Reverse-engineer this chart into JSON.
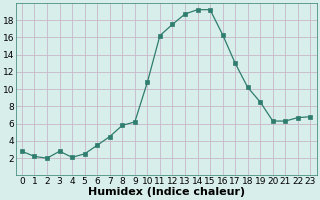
{
  "x": [
    0,
    1,
    2,
    3,
    4,
    5,
    6,
    7,
    8,
    9,
    10,
    11,
    12,
    13,
    14,
    15,
    16,
    17,
    18,
    19,
    20,
    21,
    22,
    23
  ],
  "y": [
    2.8,
    2.2,
    2.0,
    2.8,
    2.1,
    2.5,
    3.5,
    4.5,
    5.8,
    6.2,
    10.8,
    16.2,
    17.5,
    18.7,
    19.2,
    19.2,
    16.3,
    13.0,
    10.2,
    8.5,
    6.3,
    6.3,
    6.7,
    6.8
  ],
  "line_color": "#2e7d6e",
  "marker_color": "#2e7d6e",
  "bg_color": "#d8eeeb",
  "grid_color": "#c8b8c8",
  "xlabel": "Humidex (Indice chaleur)",
  "xlabel_fontsize": 8,
  "xlim": [
    -0.5,
    23.5
  ],
  "ylim": [
    0,
    20
  ],
  "yticks": [
    2,
    4,
    6,
    8,
    10,
    12,
    14,
    16,
    18
  ],
  "xticks": [
    0,
    1,
    2,
    3,
    4,
    5,
    6,
    7,
    8,
    9,
    10,
    11,
    12,
    13,
    14,
    15,
    16,
    17,
    18,
    19,
    20,
    21,
    22,
    23
  ],
  "tick_fontsize": 6.5
}
